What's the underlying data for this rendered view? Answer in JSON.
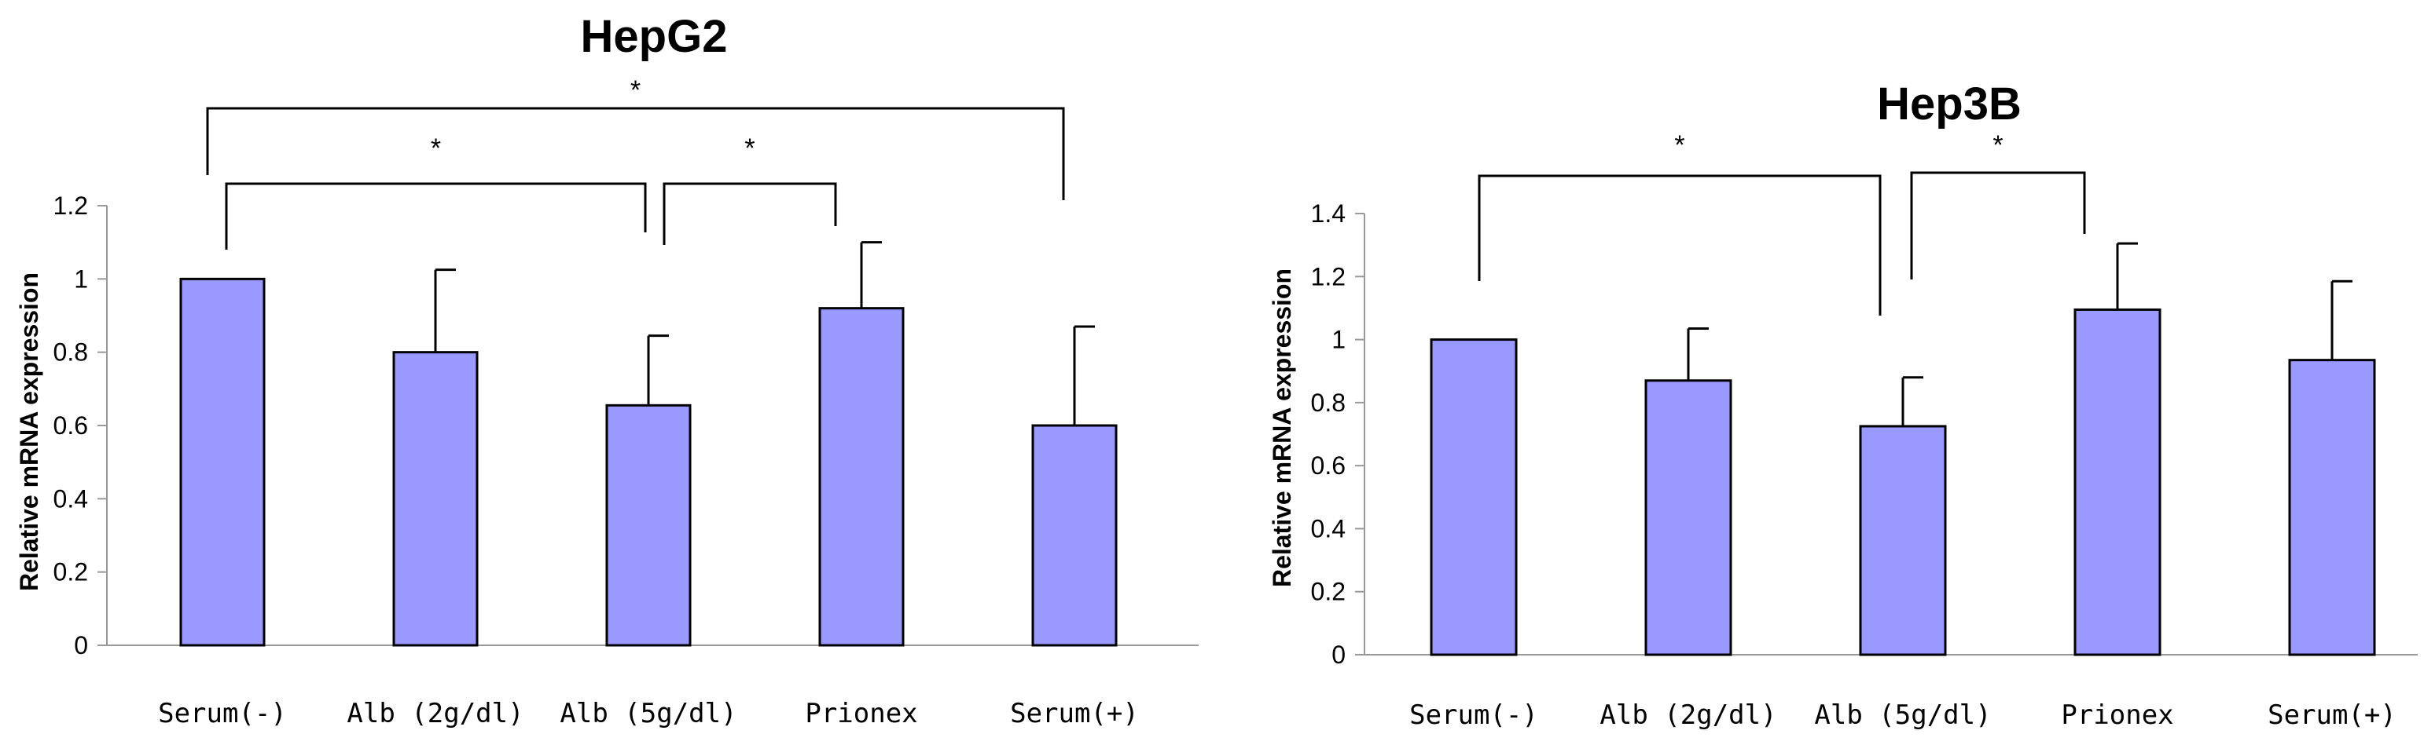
{
  "chart_data": [
    {
      "type": "bar",
      "title": "HepG2",
      "ylabel": "Relative mRNA expression",
      "categories": [
        "Serum(-)",
        "Alb (2g/dl)",
        "Alb (5g/dl)",
        "Prionex",
        "Serum(+)"
      ],
      "values": [
        1.0,
        0.8,
        0.655,
        0.92,
        0.6
      ],
      "errors": [
        0,
        0.225,
        0.19,
        0.18,
        0.27
      ],
      "ylim": [
        0,
        1.2
      ],
      "yticks": [
        "0",
        "0.2",
        "0.4",
        "0.6",
        "0.8",
        "1",
        "1.2"
      ],
      "color": "#9999ff",
      "significance": [
        {
          "from": 0,
          "to": 4,
          "label": "*"
        },
        {
          "from": 0,
          "to": 2,
          "label": "*"
        },
        {
          "from": 2,
          "to": 3,
          "label": "*"
        }
      ]
    },
    {
      "type": "bar",
      "title": "Hep3B",
      "ylabel": "Relative mRNA expression",
      "categories": [
        "Serum(-)",
        "Alb (2g/dl)",
        "Alb (5g/dl)",
        "Prionex",
        "Serum(+)"
      ],
      "values": [
        1.0,
        0.87,
        0.725,
        1.095,
        0.935
      ],
      "errors": [
        0,
        0.165,
        0.155,
        0.21,
        0.25
      ],
      "ylim": [
        0,
        1.4
      ],
      "yticks": [
        "0",
        "0.2",
        "0.4",
        "0.6",
        "0.8",
        "1",
        "1.2",
        "1.4"
      ],
      "color": "#9999ff",
      "significance": [
        {
          "from": 0,
          "to": 2,
          "label": "*"
        },
        {
          "from": 2,
          "to": 3,
          "label": "*"
        }
      ]
    }
  ]
}
